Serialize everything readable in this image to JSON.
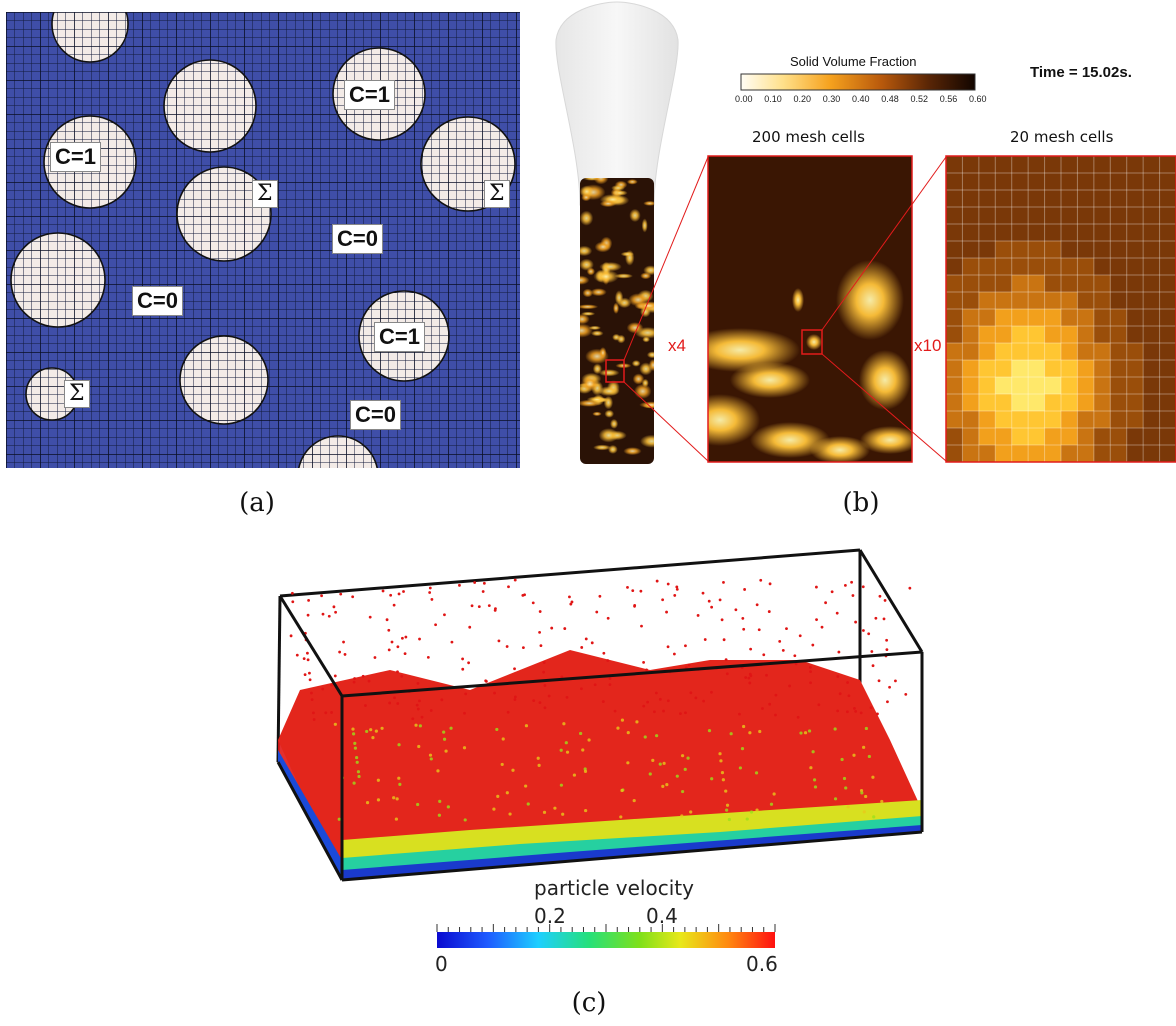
{
  "panel_a": {
    "labels": [
      {
        "text": "C=1"
      },
      {
        "text": "C=1"
      },
      {
        "text": "C=1"
      },
      {
        "text": "C=0"
      },
      {
        "text": "C=0"
      },
      {
        "text": "C=0"
      },
      {
        "text": "Σ"
      },
      {
        "text": "Σ"
      },
      {
        "text": "Σ"
      }
    ],
    "caption": "(a)",
    "colors": {
      "fluid": "#3f4ea8",
      "particle": "#f3ebe7"
    }
  },
  "panel_b": {
    "colorbar_title": "Solid Volume Fraction",
    "colorbar_ticks": [
      "0.00",
      "0.10",
      "0.20",
      "0.30",
      "0.40",
      "0.48",
      "0.52",
      "0.56",
      "0.60"
    ],
    "time_label": "Time = 15.02s.",
    "zoom1_title": "200 mesh cells",
    "zoom2_title": "20 mesh cells",
    "zoom1_factor": "x4",
    "zoom2_factor": "x10",
    "caption": "(b)"
  },
  "panel_c": {
    "colorbar_title": "particle velocity",
    "tick_top": [
      "0.2",
      "0.4"
    ],
    "tick_bottom": [
      "0",
      "0.6"
    ],
    "caption": "(c)"
  }
}
